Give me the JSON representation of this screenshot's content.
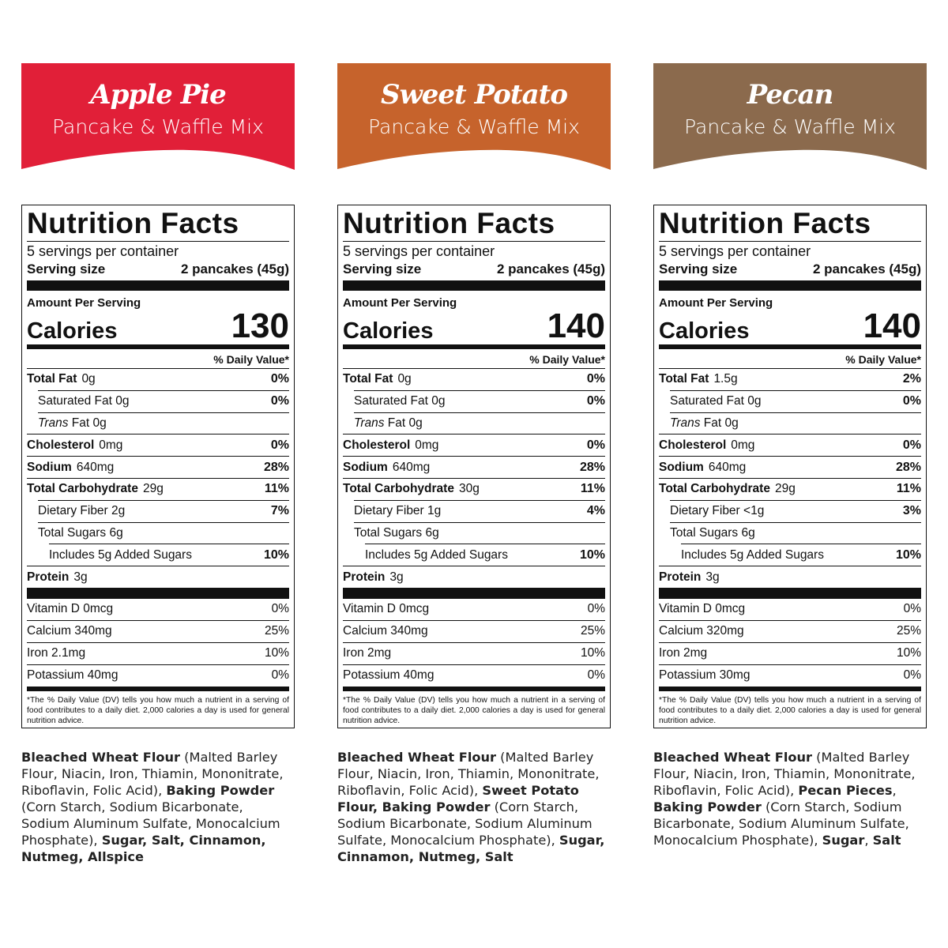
{
  "products": [
    {
      "name": "Apple Pie",
      "subtitle": "Pancake & Waffle Mix",
      "color": "#e11f38",
      "label": {
        "title": "Nutrition Facts",
        "servings": "5 servings per container",
        "serving_size_label": "Serving size",
        "serving_size": "2 pancakes (45g)",
        "amount_per_serving": "Amount Per Serving",
        "calories_label": "Calories",
        "calories": 130,
        "dv_header": "% Daily Value*",
        "nutrients": [
          {
            "name": "Total Fat",
            "amount": "0g",
            "dv": "0%",
            "bold": true,
            "indent": 0
          },
          {
            "name": "Saturated Fat 0g",
            "dv": "0%",
            "indent": 1
          },
          {
            "prefix": "Trans",
            "name": "Fat 0g",
            "indent": 1
          },
          {
            "name": "Cholesterol",
            "amount": "0mg",
            "dv": "0%",
            "bold": true,
            "indent": 0
          },
          {
            "name": "Sodium",
            "amount": "640mg",
            "dv": "28%",
            "bold": true,
            "indent": 0
          },
          {
            "name": "Total Carbohydrate",
            "amount": "29g",
            "dv": "11%",
            "bold": true,
            "indent": 0
          },
          {
            "name": "Dietary Fiber 2g",
            "dv": "7%",
            "indent": 1
          },
          {
            "name": "Total Sugars 6g",
            "indent": 1
          },
          {
            "name": "Includes 5g Added Sugars",
            "dv": "10%",
            "indent": 2
          },
          {
            "name": "Protein",
            "amount": "3g",
            "bold": true,
            "indent": 0
          }
        ],
        "vitamins": [
          {
            "name": "Vitamin D 0mcg",
            "dv": "0%"
          },
          {
            "name": "Calcium 340mg",
            "dv": "25%"
          },
          {
            "name": "Iron 2.1mg",
            "dv": "10%"
          },
          {
            "name": "Potassium 40mg",
            "dv": "0%"
          }
        ],
        "footnote": "*The % Daily Value (DV) tells you how much a nutrient in a serving of food contributes to a daily diet. 2,000 calories a day is used for general nutrition advice."
      },
      "ingredients": [
        {
          "text": "Bleached Wheat Flour",
          "bold": true
        },
        {
          "text": " (Malted Barley Flour, Niacin, Iron, Thiamin, Mononitrate, Riboflavin, Folic Acid), ",
          "bold": false
        },
        {
          "text": "Baking Powder",
          "bold": true
        },
        {
          "text": " (Corn Starch, Sodium Bicarbonate, Sodium Aluminum Sulfate, Monocalcium Phosphate), ",
          "bold": false
        },
        {
          "text": "Sugar, Salt, Cinnamon, Nutmeg, Allspice",
          "bold": true
        }
      ]
    },
    {
      "name": "Sweet Potato",
      "subtitle": "Pancake & Waffle Mix",
      "color": "#c6632c",
      "label": {
        "title": "Nutrition Facts",
        "servings": "5 servings per container",
        "serving_size_label": "Serving size",
        "serving_size": "2 pancakes (45g)",
        "amount_per_serving": "Amount Per Serving",
        "calories_label": "Calories",
        "calories": 140,
        "dv_header": "% Daily Value*",
        "nutrients": [
          {
            "name": "Total Fat",
            "amount": "0g",
            "dv": "0%",
            "bold": true,
            "indent": 0
          },
          {
            "name": "Saturated Fat 0g",
            "dv": "0%",
            "indent": 1
          },
          {
            "prefix": "Trans",
            "name": "Fat 0g",
            "indent": 1
          },
          {
            "name": "Cholesterol",
            "amount": "0mg",
            "dv": "0%",
            "bold": true,
            "indent": 0
          },
          {
            "name": "Sodium",
            "amount": "640mg",
            "dv": "28%",
            "bold": true,
            "indent": 0
          },
          {
            "name": "Total Carbohydrate",
            "amount": "30g",
            "dv": "11%",
            "bold": true,
            "indent": 0
          },
          {
            "name": "Dietary Fiber 1g",
            "dv": "4%",
            "indent": 1
          },
          {
            "name": "Total Sugars 6g",
            "indent": 1
          },
          {
            "name": "Includes 5g Added Sugars",
            "dv": "10%",
            "indent": 2
          },
          {
            "name": "Protein",
            "amount": "3g",
            "bold": true,
            "indent": 0
          }
        ],
        "vitamins": [
          {
            "name": "Vitamin D 0mcg",
            "dv": "0%"
          },
          {
            "name": "Calcium 340mg",
            "dv": "25%"
          },
          {
            "name": "Iron 2mg",
            "dv": "10%"
          },
          {
            "name": "Potassium 40mg",
            "dv": "0%"
          }
        ],
        "footnote": "*The % Daily Value (DV) tells you how much a nutrient in a serving of food contributes to a daily diet. 2,000 calories a day is used for general nutrition advice."
      },
      "ingredients": [
        {
          "text": "Bleached Wheat Flour",
          "bold": true
        },
        {
          "text": " (Malted Barley Flour, Niacin, Iron, Thiamin, Mononitrate, Riboflavin, Folic Acid), ",
          "bold": false
        },
        {
          "text": "Sweet Potato Flour, Baking Powder",
          "bold": true
        },
        {
          "text": " (Corn Starch, Sodium Bicarbonate, Sodium Aluminum Sulfate, Monocalcium Phosphate), ",
          "bold": false
        },
        {
          "text": "Sugar, Cinnamon, Nutmeg, Salt",
          "bold": true
        }
      ]
    },
    {
      "name": "Pecan",
      "subtitle": "Pancake & Waffle Mix",
      "color": "#8b6a4d",
      "label": {
        "title": "Nutrition Facts",
        "servings": "5 servings per container",
        "serving_size_label": "Serving size",
        "serving_size": "2 pancakes (45g)",
        "amount_per_serving": "Amount Per Serving",
        "calories_label": "Calories",
        "calories": 140,
        "dv_header": "% Daily Value*",
        "nutrients": [
          {
            "name": "Total Fat",
            "amount": "1.5g",
            "dv": "2%",
            "bold": true,
            "indent": 0
          },
          {
            "name": "Saturated Fat 0g",
            "dv": "0%",
            "indent": 1
          },
          {
            "prefix": "Trans",
            "name": "Fat 0g",
            "indent": 1
          },
          {
            "name": "Cholesterol",
            "amount": "0mg",
            "dv": "0%",
            "bold": true,
            "indent": 0
          },
          {
            "name": "Sodium",
            "amount": "640mg",
            "dv": "28%",
            "bold": true,
            "indent": 0
          },
          {
            "name": "Total Carbohydrate",
            "amount": "29g",
            "dv": "11%",
            "bold": true,
            "indent": 0
          },
          {
            "name": "Dietary Fiber <1g",
            "dv": "3%",
            "indent": 1
          },
          {
            "name": "Total Sugars 6g",
            "indent": 1
          },
          {
            "name": "Includes 5g Added Sugars",
            "dv": "10%",
            "indent": 2
          },
          {
            "name": "Protein",
            "amount": "3g",
            "bold": true,
            "indent": 0
          }
        ],
        "vitamins": [
          {
            "name": "Vitamin D 0mcg",
            "dv": "0%"
          },
          {
            "name": "Calcium 320mg",
            "dv": "25%"
          },
          {
            "name": "Iron 2mg",
            "dv": "10%"
          },
          {
            "name": "Potassium 30mg",
            "dv": "0%"
          }
        ],
        "footnote": "*The % Daily Value (DV) tells you how much a nutrient in a serving of food contributes to a daily diet. 2,000 calories a day is used for general nutrition advice."
      },
      "ingredients": [
        {
          "text": "Bleached Wheat Flour",
          "bold": true
        },
        {
          "text": " (Malted Barley Flour, Niacin, Iron, Thiamin, Mononitrate, Riboflavin, Folic Acid), ",
          "bold": false
        },
        {
          "text": "Pecan Pieces",
          "bold": true
        },
        {
          "text": ", ",
          "bold": false
        },
        {
          "text": "Baking Powder",
          "bold": true
        },
        {
          "text": " (Corn Starch, Sodium Bicarbonate, Sodium Aluminum Sulfate, Monocalcium Phosphate), ",
          "bold": false
        },
        {
          "text": "Sugar",
          "bold": true
        },
        {
          "text": ", ",
          "bold": false
        },
        {
          "text": "Salt",
          "bold": true
        }
      ]
    }
  ]
}
